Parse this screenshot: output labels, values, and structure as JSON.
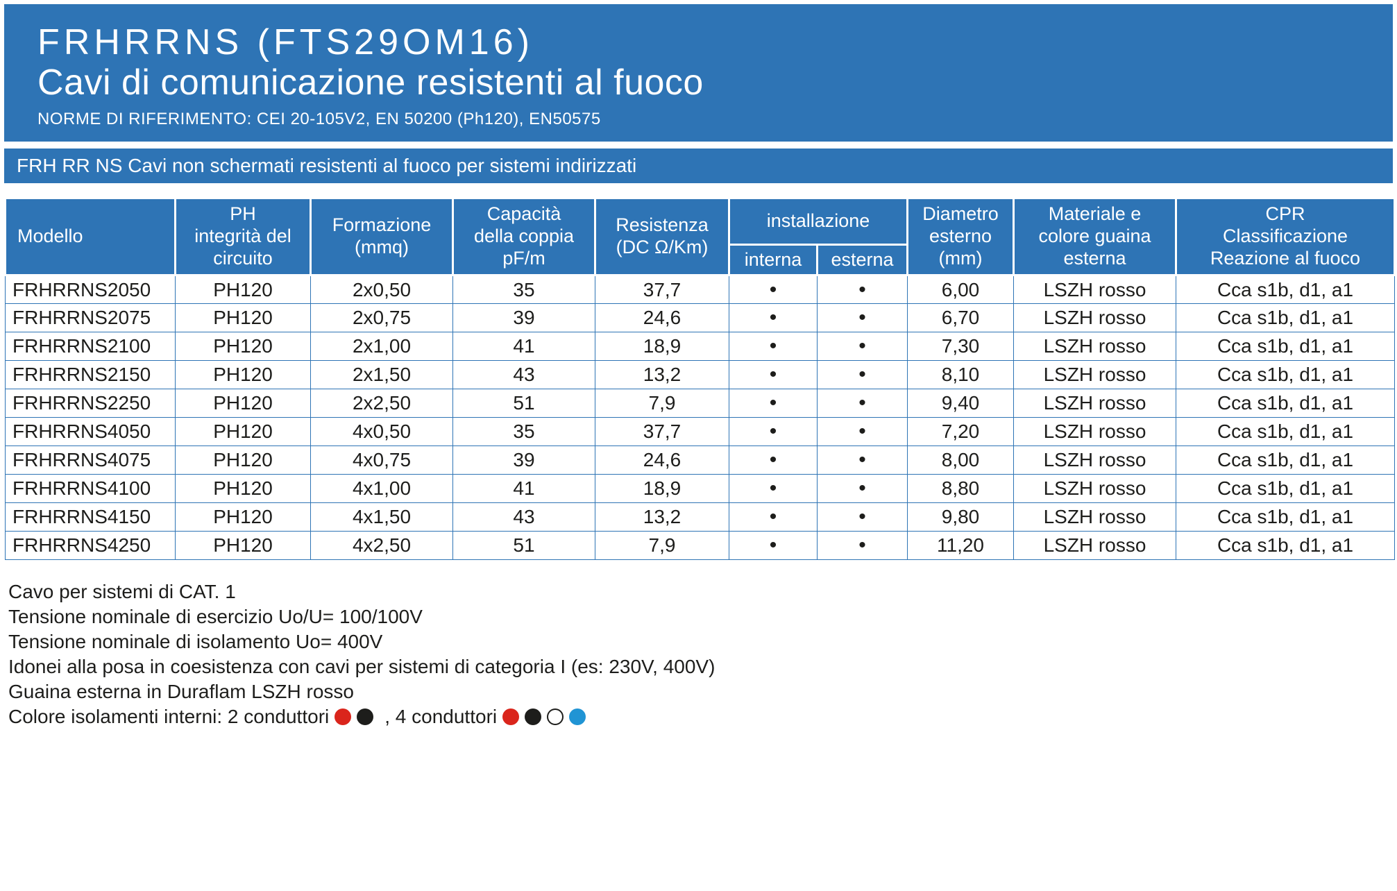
{
  "colors": {
    "accent_blue": "#2e74b5",
    "dot_red": "#da251c",
    "dot_black": "#1d1d1b",
    "dot_white": "#ffffff",
    "dot_light_blue": "#2094d4"
  },
  "header": {
    "title_line1": "FRHRRNS (FTS29OM16)",
    "title_line2": "Cavi di comunicazione resistenti al fuoco",
    "subtitle": "NORME DI RIFERIMENTO: CEI 20-105V2, EN 50200 (Ph120), EN50575"
  },
  "section_bar": "FRH RR NS Cavi non schermati resistenti al fuoco per sistemi indirizzati",
  "table": {
    "headers": {
      "modello": "Modello",
      "ph": "PH\nintegrità del\ncircuito",
      "formazione": "Formazione\n(mmq)",
      "capacita": "Capacità\ndella coppia\npF/m",
      "resistenza": "Resistenza\n(DC Ω/Km)",
      "installazione": "installazione",
      "interna": "interna",
      "esterna": "esterna",
      "diametro": "Diametro\nesterno\n(mm)",
      "materiale": "Materiale e\ncolore guaina\nesterna",
      "cpr": "CPR\nClassificazione\nReazione al fuoco"
    },
    "rows": [
      {
        "modello": "FRHRRNS2050",
        "ph": "PH120",
        "formazione": "2x0,50",
        "capacita": "35",
        "resistenza": "37,7",
        "interna": "•",
        "esterna": "•",
        "diametro": "6,00",
        "materiale": "LSZH rosso",
        "cpr": "Cca s1b, d1, a1"
      },
      {
        "modello": "FRHRRNS2075",
        "ph": "PH120",
        "formazione": "2x0,75",
        "capacita": "39",
        "resistenza": "24,6",
        "interna": "•",
        "esterna": "•",
        "diametro": "6,70",
        "materiale": "LSZH rosso",
        "cpr": "Cca s1b, d1, a1"
      },
      {
        "modello": "FRHRRNS2100",
        "ph": "PH120",
        "formazione": "2x1,00",
        "capacita": "41",
        "resistenza": "18,9",
        "interna": "•",
        "esterna": "•",
        "diametro": "7,30",
        "materiale": "LSZH rosso",
        "cpr": "Cca s1b, d1, a1"
      },
      {
        "modello": "FRHRRNS2150",
        "ph": "PH120",
        "formazione": "2x1,50",
        "capacita": "43",
        "resistenza": "13,2",
        "interna": "•",
        "esterna": "•",
        "diametro": "8,10",
        "materiale": "LSZH rosso",
        "cpr": "Cca s1b, d1, a1"
      },
      {
        "modello": "FRHRRNS2250",
        "ph": "PH120",
        "formazione": "2x2,50",
        "capacita": "51",
        "resistenza": "7,9",
        "interna": "•",
        "esterna": "•",
        "diametro": "9,40",
        "materiale": "LSZH rosso",
        "cpr": "Cca s1b, d1, a1"
      },
      {
        "modello": "FRHRRNS4050",
        "ph": "PH120",
        "formazione": "4x0,50",
        "capacita": "35",
        "resistenza": "37,7",
        "interna": "•",
        "esterna": "•",
        "diametro": "7,20",
        "materiale": "LSZH rosso",
        "cpr": "Cca s1b, d1, a1"
      },
      {
        "modello": "FRHRRNS4075",
        "ph": "PH120",
        "formazione": "4x0,75",
        "capacita": "39",
        "resistenza": "24,6",
        "interna": "•",
        "esterna": "•",
        "diametro": "8,00",
        "materiale": "LSZH rosso",
        "cpr": "Cca s1b, d1, a1"
      },
      {
        "modello": "FRHRRNS4100",
        "ph": "PH120",
        "formazione": "4x1,00",
        "capacita": "41",
        "resistenza": "18,9",
        "interna": "•",
        "esterna": "•",
        "diametro": "8,80",
        "materiale": "LSZH rosso",
        "cpr": "Cca s1b, d1, a1"
      },
      {
        "modello": "FRHRRNS4150",
        "ph": "PH120",
        "formazione": "4x1,50",
        "capacita": "43",
        "resistenza": "13,2",
        "interna": "•",
        "esterna": "•",
        "diametro": "9,80",
        "materiale": "LSZH rosso",
        "cpr": "Cca s1b, d1, a1"
      },
      {
        "modello": "FRHRRNS4250",
        "ph": "PH120",
        "formazione": "4x2,50",
        "capacita": "51",
        "resistenza": "7,9",
        "interna": "•",
        "esterna": "•",
        "diametro": "11,20",
        "materiale": "LSZH rosso",
        "cpr": "Cca s1b, d1, a1"
      }
    ]
  },
  "notes": [
    "Cavo per sistemi di CAT. 1",
    "Tensione nominale di esercizio Uo/U= 100/100V",
    "Tensione nominale di isolamento Uo= 400V",
    "Idonei alla posa in coesistenza con cavi per sistemi di categoria I (es: 230V, 400V)",
    "Guaina esterna in Duraflam LSZH rosso"
  ],
  "colors_note": {
    "prefix": "Colore isolamenti interni: 2 conduttori",
    "middle": ", 4 conduttori",
    "two_conduttori_dots": [
      {
        "fill": "#da251c"
      },
      {
        "fill": "#1d1d1b"
      }
    ],
    "four_conduttori_dots": [
      {
        "fill": "#da251c"
      },
      {
        "fill": "#1d1d1b"
      },
      {
        "fill": "#ffffff",
        "stroke": "#1d1d1b"
      },
      {
        "fill": "#2094d4"
      }
    ]
  }
}
